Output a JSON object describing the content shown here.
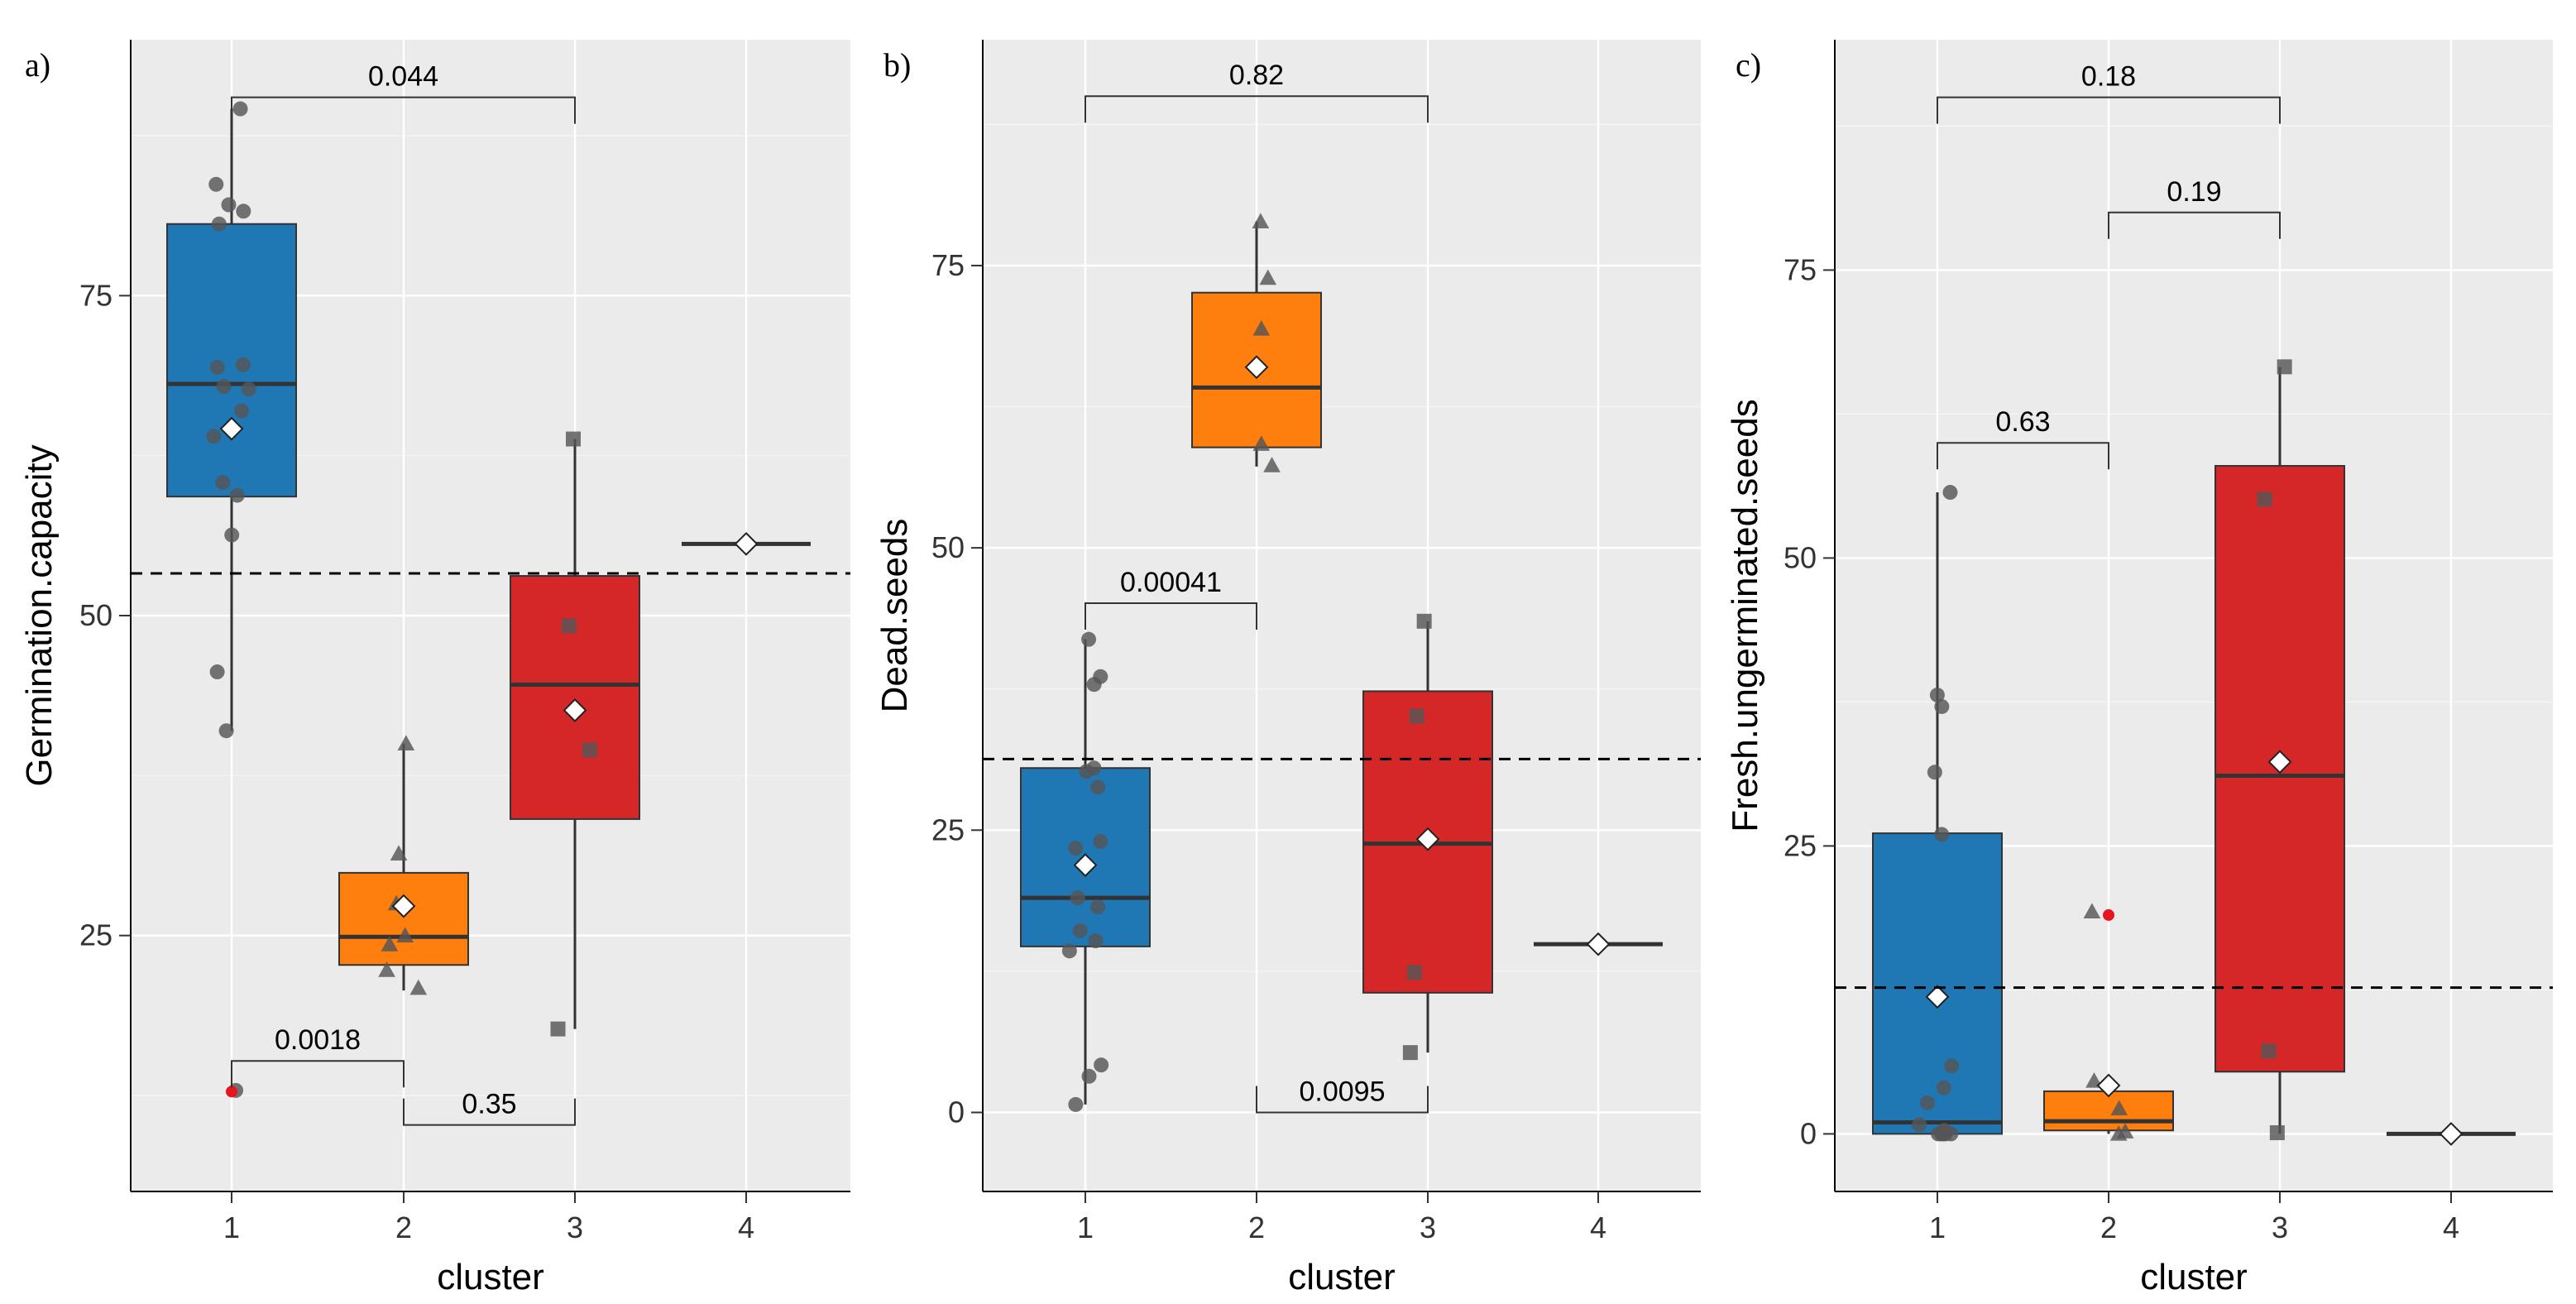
{
  "colors": {
    "panel_bg": "#ebebeb",
    "grid": "#ffffff",
    "cluster_fill": [
      "#1f77b4",
      "#ff7f0e",
      "#d62728",
      "#d62728"
    ],
    "point": "#555555",
    "outlier": "#e8141e",
    "median": "#333333",
    "mean_marker": "#ffffff"
  },
  "chart_data": [
    {
      "type": "boxplot",
      "panel_label": "a)",
      "xlabel": "cluster",
      "ylabel": "Germination.capacity",
      "categories": [
        "1",
        "2",
        "3",
        "4"
      ],
      "yticks": [
        25,
        50,
        75
      ],
      "ylim": [
        5,
        95
      ],
      "grid": true,
      "reference_line": 53.3,
      "boxes": [
        {
          "cluster": "1",
          "q1": 59.3,
          "median": 68.1,
          "q3": 80.6,
          "whisker_low": 41.0,
          "whisker_high": 89.6,
          "mean": 64.6,
          "shape": "circle",
          "points": [
            89.6,
            83.7,
            82.1,
            81.6,
            80.6,
            69.6,
            69.4,
            67.7,
            67.9,
            66.0,
            64.0,
            60.4,
            59.4,
            56.3,
            45.6,
            41.0,
            12.9
          ],
          "outliers": [
            12.8
          ]
        },
        {
          "cluster": "2",
          "q1": 22.7,
          "median": 24.9,
          "q3": 29.9,
          "whisker_low": 20.7,
          "whisker_high": 40.0,
          "mean": 27.3,
          "shape": "triangle",
          "points": [
            40.0,
            31.4,
            27.5,
            25.0,
            24.3,
            22.3,
            20.9
          ],
          "outliers": []
        },
        {
          "cluster": "3",
          "q1": 34.1,
          "median": 44.6,
          "q3": 53.1,
          "whisker_low": 17.7,
          "whisker_high": 63.8,
          "mean": 42.6,
          "shape": "square",
          "points": [
            63.8,
            49.2,
            39.5,
            17.7
          ],
          "outliers": []
        },
        {
          "cluster": "4",
          "q1": 55.6,
          "median": 55.6,
          "q3": 55.6,
          "whisker_low": 55.6,
          "whisker_high": 55.6,
          "mean": 55.6,
          "shape": "diamond",
          "points": [],
          "outliers": []
        }
      ],
      "comparisons": [
        {
          "from": "1",
          "to": "3",
          "label": "0.044",
          "y": 90.5,
          "direction": "down"
        },
        {
          "from": "1",
          "to": "2",
          "label": "0.0018",
          "y": 15.2,
          "direction": "down"
        },
        {
          "from": "2",
          "to": "3",
          "label": "0.35",
          "y": 10.2,
          "direction": "up"
        }
      ]
    },
    {
      "type": "boxplot",
      "panel_label": "b)",
      "xlabel": "cluster",
      "ylabel": "Dead.seeds",
      "categories": [
        "1",
        "2",
        "3",
        "4"
      ],
      "yticks": [
        0,
        25,
        50,
        75
      ],
      "ylim": [
        -7,
        95
      ],
      "grid": true,
      "reference_line": 31.3,
      "boxes": [
        {
          "cluster": "1",
          "q1": 14.7,
          "median": 19.0,
          "q3": 30.5,
          "whisker_low": 0.7,
          "whisker_high": 41.9,
          "mean": 21.9,
          "shape": "circle",
          "points": [
            41.9,
            38.6,
            37.9,
            30.5,
            30.2,
            28.8,
            24.0,
            23.4,
            19.0,
            18.2,
            16.1,
            15.2,
            14.3,
            4.2,
            3.2,
            0.7
          ],
          "outliers": []
        },
        {
          "cluster": "2",
          "q1": 58.9,
          "median": 64.2,
          "q3": 72.6,
          "whisker_low": 57.2,
          "whisker_high": 78.9,
          "mean": 66.0,
          "shape": "triangle",
          "points": [
            78.9,
            73.9,
            69.4,
            59.2,
            57.3
          ],
          "outliers": []
        },
        {
          "cluster": "3",
          "q1": 10.6,
          "median": 23.8,
          "q3": 37.3,
          "whisker_low": 5.3,
          "whisker_high": 43.5,
          "mean": 24.2,
          "shape": "square",
          "points": [
            43.5,
            35.1,
            12.4,
            5.3
          ],
          "outliers": []
        },
        {
          "cluster": "4",
          "q1": 14.9,
          "median": 14.9,
          "q3": 14.9,
          "whisker_low": 14.9,
          "whisker_high": 14.9,
          "mean": 14.9,
          "shape": "diamond",
          "points": [],
          "outliers": []
        }
      ],
      "comparisons": [
        {
          "from": "1",
          "to": "3",
          "label": "0.82",
          "y": 90.0,
          "direction": "down"
        },
        {
          "from": "1",
          "to": "2",
          "label": "0.00041",
          "y": 45.1,
          "direction": "down"
        },
        {
          "from": "2",
          "to": "3",
          "label": "0.0095",
          "y": 0.0,
          "direction": "up"
        }
      ]
    },
    {
      "type": "boxplot",
      "panel_label": "c)",
      "xlabel": "cluster",
      "ylabel": "Fresh.ungerminated.seeds",
      "categories": [
        "1",
        "2",
        "3",
        "4"
      ],
      "yticks": [
        0,
        25,
        50,
        75
      ],
      "ylim": [
        -5,
        95
      ],
      "grid": true,
      "reference_line": 12.7,
      "boxes": [
        {
          "cluster": "1",
          "q1": 0.0,
          "median": 1.0,
          "q3": 26.1,
          "whisker_low": 0.0,
          "whisker_high": 55.7,
          "mean": 11.9,
          "shape": "circle",
          "points": [
            55.7,
            38.1,
            37.1,
            31.4,
            26.0,
            5.9,
            4.0,
            2.7,
            0.8,
            0.3,
            0.1,
            0.0,
            0.0,
            0.0,
            0.0,
            0.0
          ],
          "outliers": []
        },
        {
          "cluster": "2",
          "q1": 0.3,
          "median": 1.1,
          "q3": 3.7,
          "whisker_low": 0.0,
          "whisker_high": 3.7,
          "mean": 4.2,
          "shape": "triangle",
          "points": [
            19.3,
            4.6,
            2.2,
            0.2,
            0.0
          ],
          "outliers": [
            19.0
          ]
        },
        {
          "cluster": "3",
          "q1": 5.4,
          "median": 31.1,
          "q3": 58.0,
          "whisker_low": 0.0,
          "whisker_high": 66.6,
          "mean": 32.3,
          "shape": "square",
          "points": [
            66.6,
            55.1,
            7.2,
            0.1
          ],
          "outliers": []
        },
        {
          "cluster": "4",
          "q1": 0.0,
          "median": 0.0,
          "q3": 0.0,
          "whisker_low": 0.0,
          "whisker_high": 0.0,
          "mean": 0.0,
          "shape": "diamond",
          "points": [],
          "outliers": []
        }
      ],
      "comparisons": [
        {
          "from": "1",
          "to": "3",
          "label": "0.18",
          "y": 90.0,
          "direction": "down"
        },
        {
          "from": "2",
          "to": "3",
          "label": "0.19",
          "y": 80.0,
          "direction": "down"
        },
        {
          "from": "1",
          "to": "2",
          "label": "0.63",
          "y": 60.0,
          "direction": "down"
        }
      ]
    }
  ]
}
